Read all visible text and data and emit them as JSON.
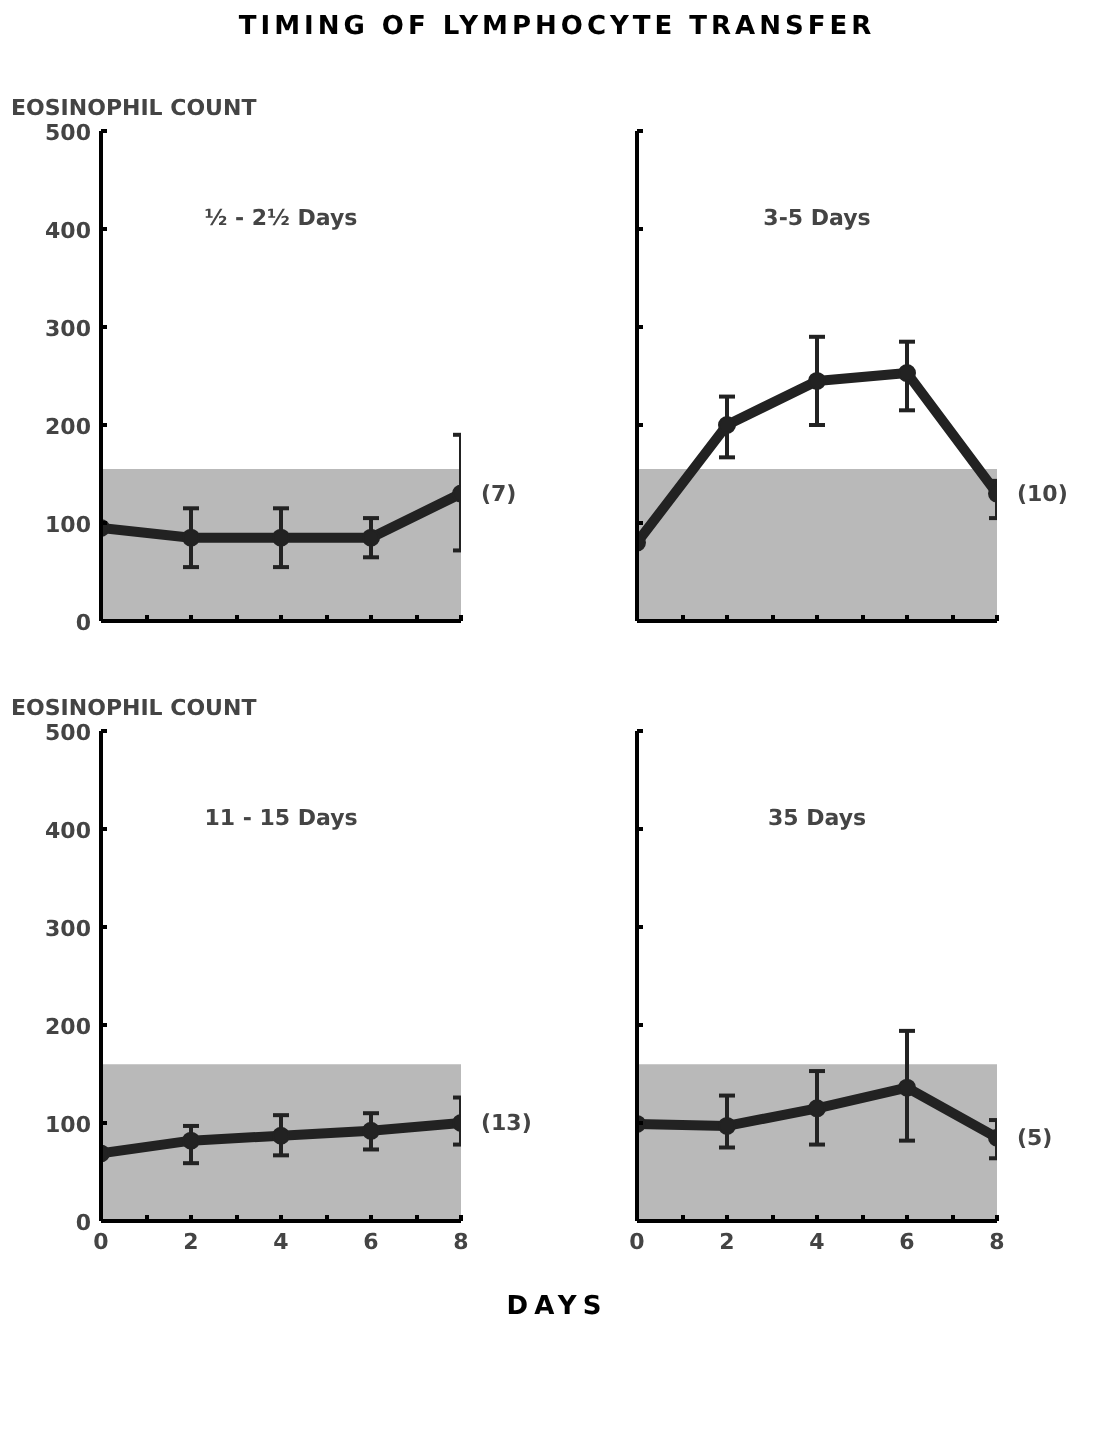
{
  "chart_data": [
    {
      "type": "line",
      "title": "TIMING OF LYMPHOCYTE TRANSFER",
      "ylabel": "EOSINOPHIL COUNT",
      "subtitle": "½ - 2½ Days",
      "x": [
        0,
        2,
        4,
        6,
        8
      ],
      "series": [
        {
          "color": "#222222",
          "values": [
            95,
            85,
            85,
            85,
            130
          ],
          "errors": [
            null,
            [
              55,
              115
            ],
            [
              55,
              115
            ],
            [
              65,
              105
            ],
            [
              72,
              190
            ]
          ]
        }
      ],
      "annotations": [
        "(7)"
      ],
      "bands": [
        {
          "axis": "y",
          "from": 0,
          "to": 155,
          "color": "#a8a8a8"
        }
      ],
      "xlim": [
        0,
        8
      ],
      "ylim": [
        0,
        500
      ],
      "xticks": [
        0,
        {
          "value": 1,
          "label": null
        },
        2,
        {
          "value": 3,
          "label": null
        },
        4,
        {
          "value": 5,
          "label": null
        },
        6,
        {
          "value": 7,
          "label": null
        },
        8
      ],
      "yticks": [
        0,
        100,
        200,
        300,
        400,
        500
      ],
      "tick_labels": "y",
      "marker": "circle",
      "line_style": "solid",
      "grid": false
    },
    {
      "type": "line",
      "subtitle": "3-5 Days",
      "x": [
        0,
        2,
        4,
        6,
        8
      ],
      "series": [
        {
          "color": "#222222",
          "values": [
            80,
            200,
            245,
            253,
            130
          ],
          "errors": [
            null,
            [
              167,
              229
            ],
            [
              200,
              290
            ],
            [
              215,
              285
            ],
            [
              105,
              143
            ]
          ]
        }
      ],
      "annotations": [
        "(10)"
      ],
      "bands": [
        {
          "axis": "y",
          "from": 0,
          "to": 155,
          "color": "#a8a8a8"
        }
      ],
      "xlim": [
        0,
        8
      ],
      "ylim": [
        0,
        500
      ],
      "xticks": [
        0,
        {
          "value": 1,
          "label": null
        },
        2,
        {
          "value": 3,
          "label": null
        },
        4,
        {
          "value": 5,
          "label": null
        },
        6,
        {
          "value": 7,
          "label": null
        },
        8
      ],
      "yticks": [
        0,
        100,
        200,
        300,
        400,
        500
      ],
      "tick_labels": false,
      "marker": "circle",
      "line_style": "solid",
      "grid": false
    },
    {
      "type": "line",
      "ylabel": "EOSINOPHIL COUNT",
      "subtitle": "11 - 15 Days",
      "xlabel": "DAYS",
      "x": [
        0,
        2,
        4,
        6,
        8
      ],
      "series": [
        {
          "color": "#222222",
          "values": [
            69,
            82,
            87,
            92,
            100
          ],
          "errors": [
            null,
            [
              59,
              97
            ],
            [
              67,
              108
            ],
            [
              73,
              110
            ],
            [
              78,
              126
            ]
          ]
        }
      ],
      "annotations": [
        "(13)"
      ],
      "bands": [
        {
          "axis": "y",
          "from": 0,
          "to": 160,
          "color": "#a8a8a8"
        }
      ],
      "xlim": [
        0,
        8
      ],
      "ylim": [
        0,
        500
      ],
      "xticks": [
        0,
        {
          "value": 1,
          "label": null
        },
        2,
        {
          "value": 3,
          "label": null
        },
        4,
        {
          "value": 5,
          "label": null
        },
        6,
        {
          "value": 7,
          "label": null
        },
        8
      ],
      "yticks": [
        0,
        100,
        200,
        300,
        400,
        500
      ],
      "marker": "circle",
      "line_style": "solid",
      "grid": false
    },
    {
      "type": "line",
      "subtitle": "35 Days",
      "x": [
        0,
        2,
        4,
        6,
        8
      ],
      "series": [
        {
          "color": "#222222",
          "values": [
            99,
            97,
            115,
            136,
            85
          ],
          "errors": [
            null,
            [
              75,
              128
            ],
            [
              78,
              153
            ],
            [
              82,
              194
            ],
            [
              64,
              103
            ]
          ]
        }
      ],
      "annotations": [
        "(5)"
      ],
      "bands": [
        {
          "axis": "y",
          "from": 0,
          "to": 160,
          "color": "#a8a8a8"
        }
      ],
      "xlim": [
        0,
        8
      ],
      "ylim": [
        0,
        500
      ],
      "xticks": [
        0,
        {
          "value": 1,
          "label": null
        },
        2,
        {
          "value": 3,
          "label": null
        },
        4,
        {
          "value": 5,
          "label": null
        },
        6,
        {
          "value": 7,
          "label": null
        },
        8
      ],
      "yticks": [
        0,
        100,
        200,
        300,
        400,
        500
      ],
      "tick_labels": "x",
      "marker": "circle",
      "line_style": "solid",
      "grid": false
    }
  ]
}
